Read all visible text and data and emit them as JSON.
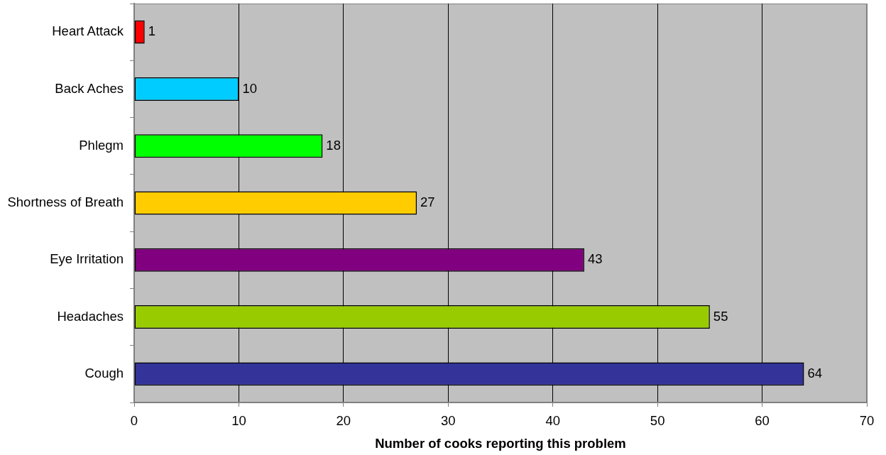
{
  "chart_data": {
    "type": "bar",
    "orientation": "horizontal",
    "xlabel": "Number of cooks reporting this problem",
    "categories": [
      "Heart Attack",
      "Back Aches",
      "Phlegm",
      "Shortness of Breath",
      "Eye Irritation",
      "Headaches",
      "Cough"
    ],
    "values": [
      1,
      10,
      18,
      27,
      43,
      55,
      64
    ],
    "colors": [
      "#ff0000",
      "#00ccff",
      "#00ff00",
      "#ffcc00",
      "#800080",
      "#99cc00",
      "#333399"
    ],
    "xlim": [
      0,
      70
    ],
    "xticks": [
      0,
      10,
      20,
      30,
      40,
      50,
      60,
      70
    ],
    "grid": "x",
    "data_labels": true
  }
}
